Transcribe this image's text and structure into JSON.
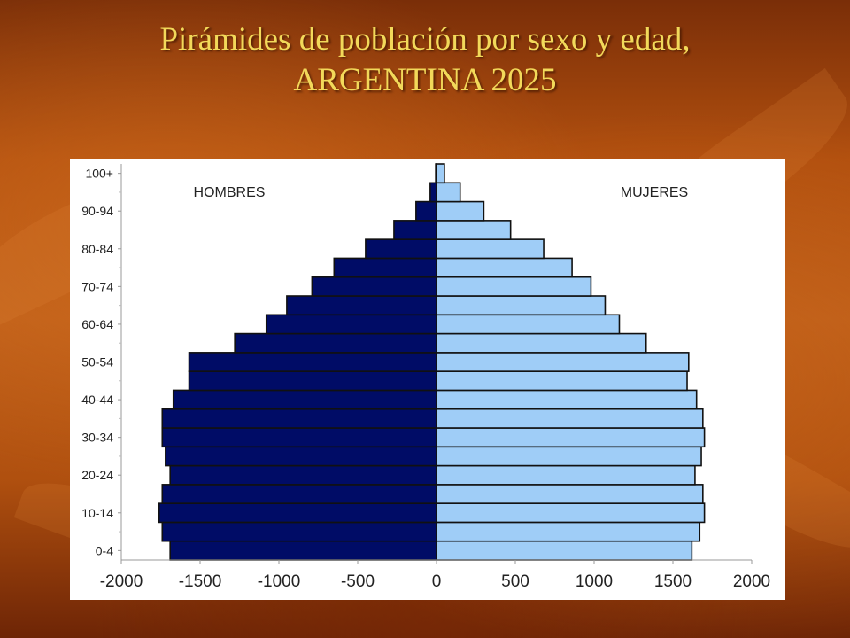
{
  "slide": {
    "title_line1": "Pirámides de población por sexo y edad,",
    "title_line2": "ARGENTINA 2025"
  },
  "colors": {
    "male": "#000c66",
    "female": "#9fcdf7",
    "bar_outline": "#111111",
    "title": "#f2d95a"
  },
  "chart_data": {
    "type": "bar",
    "orientation": "horizontal",
    "title": "",
    "xlabel": "",
    "ylabel": "",
    "xlim": [
      -2000,
      2000
    ],
    "x_ticks": [
      "-2000",
      "-1500",
      "-1000",
      "-500",
      "0",
      "500",
      "1000",
      "1500",
      "2000"
    ],
    "x_tick_values": [
      -2000,
      -1500,
      -1000,
      -500,
      0,
      500,
      1000,
      1500,
      2000
    ],
    "y_tick_labels": [
      "0-4",
      "10-14",
      "20-24",
      "30-34",
      "40-44",
      "50-54",
      "60-64",
      "70-74",
      "80-84",
      "90-94",
      "100+"
    ],
    "legend_labels": [
      "HOMBRES",
      "MUJERES"
    ],
    "legend_placement": "top-left / top-right",
    "grid": false,
    "categories": [
      "0-4",
      "5-9",
      "10-14",
      "15-19",
      "20-24",
      "25-29",
      "30-34",
      "35-39",
      "40-44",
      "45-49",
      "50-54",
      "55-59",
      "60-64",
      "65-69",
      "70-74",
      "75-79",
      "80-84",
      "85-89",
      "90-94",
      "95-99",
      "100+"
    ],
    "series": [
      {
        "name": "HOMBRES",
        "values": [
          -1690,
          -1740,
          -1760,
          -1740,
          -1690,
          -1720,
          -1740,
          -1740,
          -1670,
          -1570,
          -1570,
          -1280,
          -1080,
          -950,
          -790,
          -650,
          -450,
          -270,
          -130,
          -40,
          -5
        ]
      },
      {
        "name": "MUJERES",
        "values": [
          1620,
          1670,
          1700,
          1690,
          1640,
          1680,
          1700,
          1690,
          1650,
          1590,
          1600,
          1330,
          1160,
          1070,
          980,
          860,
          680,
          470,
          300,
          150,
          50
        ]
      }
    ]
  }
}
